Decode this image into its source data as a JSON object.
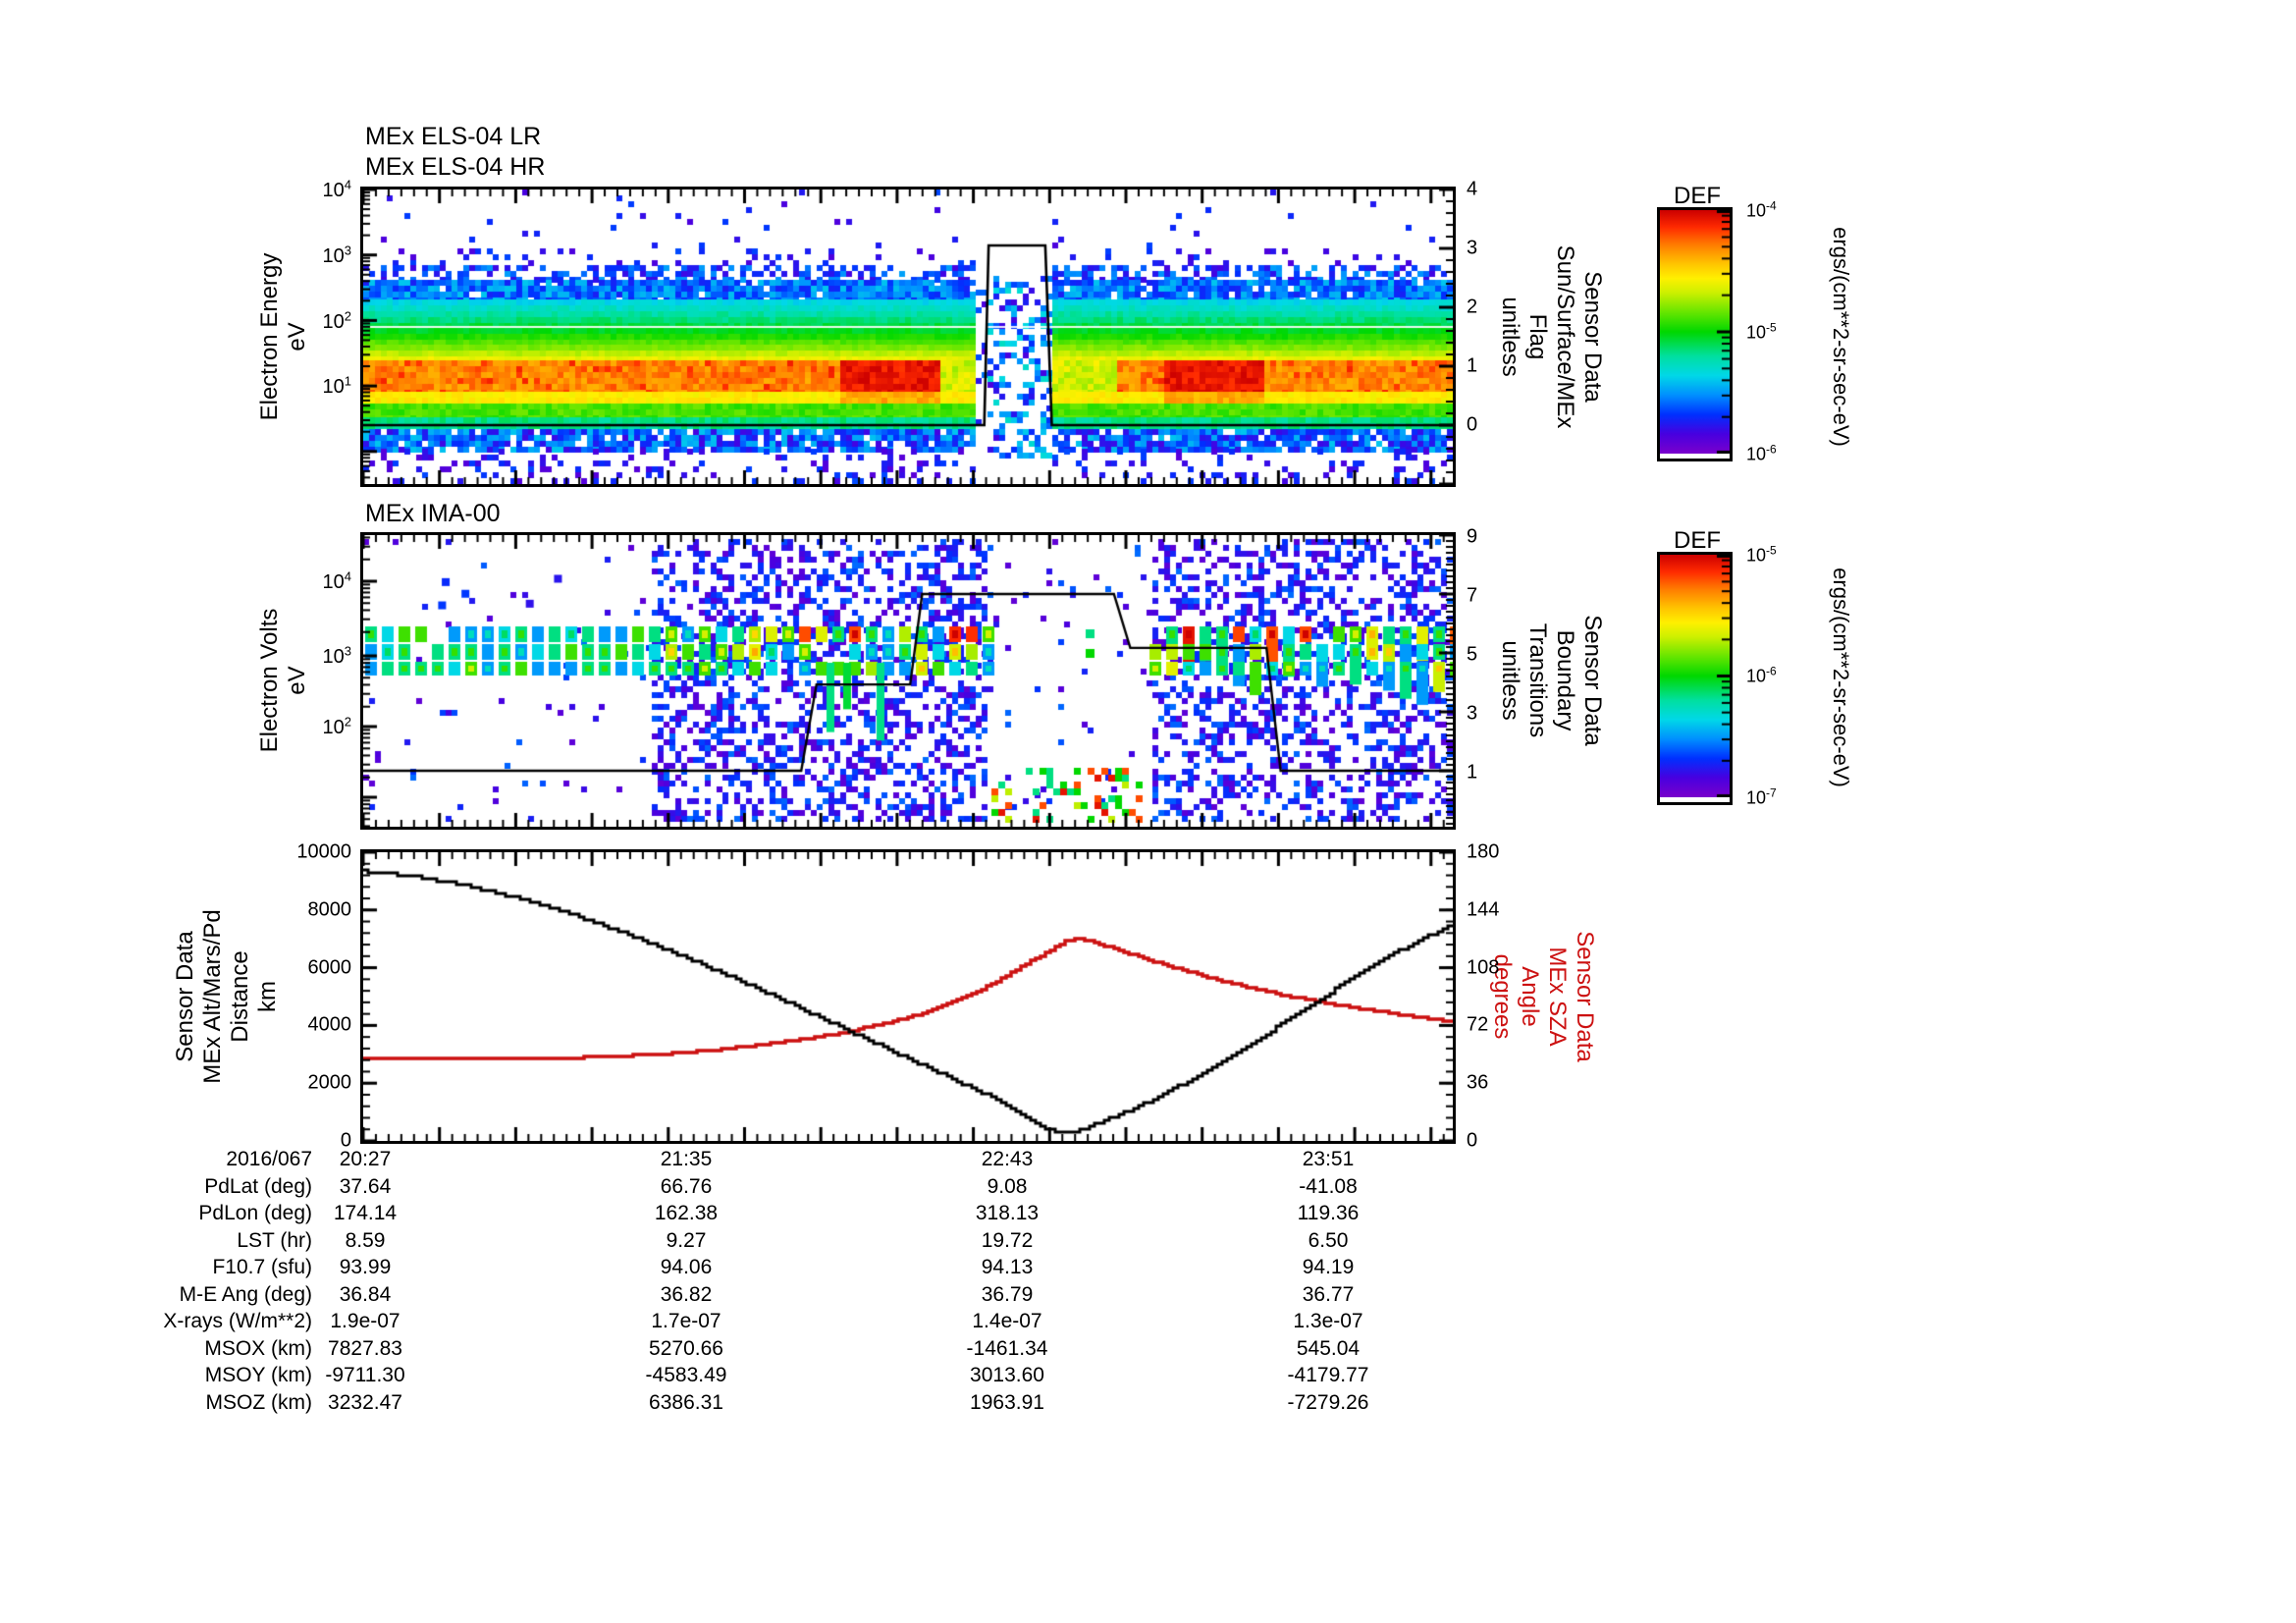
{
  "x_axis": {
    "date": "2016/067",
    "time_ticks": [
      "20:27",
      "21:35",
      "22:43",
      "23:51"
    ]
  },
  "panels": {
    "els": {
      "title": "MEx ELS-04 LR\nMEx ELS-04 HR",
      "y_label": "Electron Energy\neV",
      "y_ticks": [
        {
          "b": "10",
          "e": "4"
        },
        {
          "b": "10",
          "e": "3"
        },
        {
          "b": "10",
          "e": "2"
        },
        {
          "b": "10",
          "e": "1"
        }
      ],
      "right_label": "Sensor Data\nSun/Surface/MEx\nFlag\nunitless",
      "right_ticks": [
        "4",
        "3",
        "2",
        "1",
        "0"
      ]
    },
    "ima": {
      "title": "MEx IMA-00",
      "y_label": "Electron Volts\neV",
      "y_ticks": [
        {
          "b": "10",
          "e": "4"
        },
        {
          "b": "10",
          "e": "3"
        },
        {
          "b": "10",
          "e": "2"
        }
      ],
      "right_label": "Sensor Data\nBoundary\nTransitions\nunitless",
      "right_ticks": [
        "9",
        "7",
        "5",
        "3",
        "1"
      ]
    },
    "orbit": {
      "y_label": "Sensor Data\nMEx Alt/Mars/Pd\nDistance\nkm",
      "y_ticks": [
        "10000",
        "8000",
        "6000",
        "4000",
        "2000",
        "0"
      ],
      "right_label": "Sensor Data\nMEx SZA\nAngle\ndegrees",
      "right_ticks": [
        "180",
        "144",
        "108",
        "72",
        "36",
        "0"
      ],
      "right_color": "#cc1111"
    }
  },
  "colorbars": [
    {
      "title": "DEF",
      "ticks": [
        {
          "b": "10",
          "e": "-4"
        },
        {
          "b": "10",
          "e": "-5"
        },
        {
          "b": "10",
          "e": "-6"
        }
      ],
      "units": "ergs/(cm**2-sr-sec-eV)"
    },
    {
      "title": "DEF",
      "ticks": [
        {
          "b": "10",
          "e": "-5"
        },
        {
          "b": "10",
          "e": "-6"
        },
        {
          "b": "10",
          "e": "-7"
        }
      ],
      "units": "ergs/(cm**2-sr-sec-eV)"
    }
  ],
  "table": {
    "rows": [
      {
        "label": "PdLat (deg)",
        "values": [
          "37.64",
          "66.76",
          "9.08",
          "-41.08"
        ]
      },
      {
        "label": "PdLon (deg)",
        "values": [
          "174.14",
          "162.38",
          "318.13",
          "119.36"
        ]
      },
      {
        "label": "LST (hr)",
        "values": [
          "8.59",
          "9.27",
          "19.72",
          "6.50"
        ]
      },
      {
        "label": "F10.7 (sfu)",
        "values": [
          "93.99",
          "94.06",
          "94.13",
          "94.19"
        ]
      },
      {
        "label": "M-E Ang (deg)",
        "values": [
          "36.84",
          "36.82",
          "36.79",
          "36.77"
        ]
      },
      {
        "label": "X-rays (W/m**2)",
        "values": [
          "1.9e-07",
          "1.7e-07",
          "1.4e-07",
          "1.3e-07"
        ]
      },
      {
        "label": "MSOX (km)",
        "values": [
          "7827.83",
          "5270.66",
          "-1461.34",
          "545.04"
        ]
      },
      {
        "label": "MSOY (km)",
        "values": [
          "-9711.30",
          "-4583.49",
          "3013.60",
          "-4179.77"
        ]
      },
      {
        "label": "MSOZ (km)",
        "values": [
          "3232.47",
          "6386.31",
          "1963.91",
          "-7279.26"
        ]
      }
    ]
  },
  "chart_data": [
    {
      "type": "heatmap",
      "title": "MEx ELS-04 LR / MEx ELS-04 HR",
      "ylabel": "Electron Energy (eV)",
      "yscale": "log",
      "ylim": [
        10,
        10000
      ],
      "x_ticks": [
        "20:27",
        "21:35",
        "22:43",
        "23:51"
      ],
      "z_units": "ergs/(cm**2-sr-sec-eV)",
      "zlim": [
        1e-06,
        0.0001
      ],
      "bands": "Continuous horizontal flux bands: white above ~700 eV with sparse violet speckle 300-700 eV, blue 200-300 eV, cyan-green 60-200 eV, intense orange-red core 15-60 eV, green-cyan below, violet speckle under 8 eV",
      "features": "Bright red flux blobs near 22:10-22:30 and 23:15-23:35; data gap with sparse blue speckle ~22:40-22:55 coinciding with flag pulse",
      "overlay": {
        "name": "Sun/Surface/MEx Flag",
        "range": [
          0,
          4
        ],
        "points": [
          [
            0,
            0
          ],
          [
            0.57,
            0
          ],
          [
            0.574,
            3.05
          ],
          [
            0.626,
            3.05
          ],
          [
            0.632,
            0
          ],
          [
            1,
            0
          ]
        ]
      }
    },
    {
      "type": "heatmap",
      "title": "MEx IMA-00",
      "ylabel": "Electron Volts (eV)",
      "yscale": "log",
      "ylim": [
        4,
        40000
      ],
      "x_ticks": [
        "20:27",
        "21:35",
        "22:43",
        "23:51"
      ],
      "z_units": "ergs/(cm**2-sr-sec-eV)",
      "zlim": [
        1e-07,
        1e-05
      ],
      "bands": "Blocky striped ion band ~600-2500 eV (blue/cyan/green pills, red-orange tips after ~21:05); dense violet speckle over full energy range from ~21:05 to ~22:40 and after ~23:10; sparse region near periapsis with low-energy (10-30 eV) green/red blobs",
      "overlay": {
        "name": "Boundary Transitions",
        "range": [
          -1,
          9
        ],
        "points": [
          [
            0,
            0.9
          ],
          [
            0.402,
            0.9
          ],
          [
            0.416,
            3.83
          ],
          [
            0.502,
            3.83
          ],
          [
            0.513,
            6.9
          ],
          [
            0.689,
            6.9
          ],
          [
            0.704,
            5.07
          ],
          [
            0.829,
            5.07
          ],
          [
            0.842,
            0.9
          ],
          [
            1,
            0.9
          ]
        ]
      }
    },
    {
      "type": "line",
      "x_ticks": [
        "20:27",
        "21:35",
        "22:43",
        "23:51"
      ],
      "series": [
        {
          "name": "MEx Alt/Mars/Pd Distance (km)",
          "color": "#000000",
          "ylim": [
            0,
            10000
          ],
          "points": [
            [
              0,
              9350
            ],
            [
              0.05,
              9140
            ],
            [
              0.1,
              8800
            ],
            [
              0.15,
              8330
            ],
            [
              0.2,
              7740
            ],
            [
              0.25,
              7050
            ],
            [
              0.3,
              6290
            ],
            [
              0.35,
              5470
            ],
            [
              0.4,
              4610
            ],
            [
              0.45,
              3730
            ],
            [
              0.5,
              2850
            ],
            [
              0.55,
              1980
            ],
            [
              0.58,
              1460
            ],
            [
              0.61,
              820
            ],
            [
              0.625,
              420
            ],
            [
              0.64,
              310
            ],
            [
              0.655,
              340
            ],
            [
              0.67,
              560
            ],
            [
              0.7,
              1000
            ],
            [
              0.73,
              1540
            ],
            [
              0.76,
              2140
            ],
            [
              0.79,
              2800
            ],
            [
              0.82,
              3500
            ],
            [
              0.85,
              4230
            ],
            [
              0.88,
              4970
            ],
            [
              0.91,
              5690
            ],
            [
              0.94,
              6370
            ],
            [
              0.97,
              6980
            ],
            [
              1.0,
              7500
            ]
          ]
        },
        {
          "name": "MEx SZA Angle (degrees)",
          "color": "#cc1111",
          "ylim": [
            0,
            180
          ],
          "points": [
            [
              0,
              51.5
            ],
            [
              0.1,
              51.5
            ],
            [
              0.2,
              52
            ],
            [
              0.24,
              53
            ],
            [
              0.28,
              54.5
            ],
            [
              0.32,
              56.5
            ],
            [
              0.36,
              59.5
            ],
            [
              0.4,
              63
            ],
            [
              0.44,
              67.5
            ],
            [
              0.48,
              73.5
            ],
            [
              0.52,
              81
            ],
            [
              0.56,
              92
            ],
            [
              0.59,
              103
            ],
            [
              0.61,
              111
            ],
            [
              0.63,
              119
            ],
            [
              0.645,
              125
            ],
            [
              0.655,
              126
            ],
            [
              0.67,
              124
            ],
            [
              0.69,
              119.5
            ],
            [
              0.72,
              113
            ],
            [
              0.75,
              107
            ],
            [
              0.78,
              101
            ],
            [
              0.81,
              96
            ],
            [
              0.84,
              91.5
            ],
            [
              0.87,
              87.5
            ],
            [
              0.9,
              84
            ],
            [
              0.93,
              81
            ],
            [
              0.96,
              78
            ],
            [
              1.0,
              74.5
            ]
          ]
        }
      ]
    }
  ]
}
